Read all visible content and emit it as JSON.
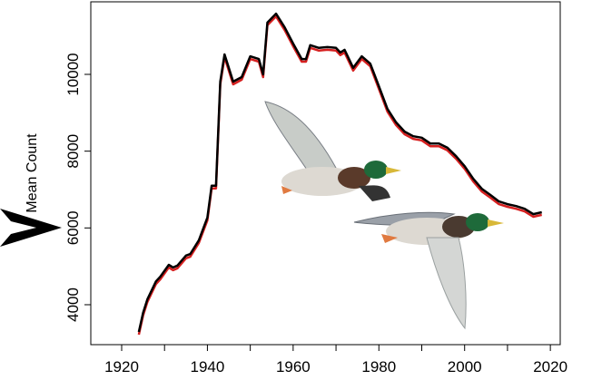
{
  "chart_data": {
    "type": "line",
    "y_label": "Mean Count",
    "x": [
      1924,
      1925,
      1926,
      1928,
      1929,
      1931,
      1932,
      1933,
      1935,
      1936,
      1938,
      1940,
      1941,
      1942,
      1943,
      1944,
      1946,
      1948,
      1950,
      1952,
      1953,
      1954,
      1956,
      1958,
      1960,
      1962,
      1963,
      1964,
      1966,
      1968,
      1970,
      1971,
      1972,
      1974,
      1976,
      1978,
      1980,
      1982,
      1984,
      1986,
      1988,
      1990,
      1992,
      1994,
      1996,
      1998,
      2000,
      2002,
      2004,
      2006,
      2008,
      2010,
      2012,
      2014,
      2016,
      2018
    ],
    "series": [
      {
        "color": "#d62020",
        "values": [
          3220,
          3720,
          4070,
          4540,
          4660,
          4970,
          4900,
          4950,
          5210,
          5250,
          5610,
          6200,
          7030,
          7030,
          9740,
          10450,
          9740,
          9860,
          10400,
          10330,
          9930,
          11280,
          11510,
          11160,
          10730,
          10330,
          10330,
          10690,
          10620,
          10640,
          10620,
          10500,
          10570,
          10100,
          10400,
          10210,
          9620,
          9030,
          8680,
          8440,
          8320,
          8280,
          8130,
          8130,
          8020,
          7800,
          7540,
          7210,
          6950,
          6790,
          6620,
          6550,
          6500,
          6430,
          6290,
          6340
        ]
      },
      {
        "color": "#000000",
        "values": [
          3290,
          3790,
          4140,
          4610,
          4730,
          5040,
          4970,
          5020,
          5280,
          5320,
          5680,
          6270,
          7100,
          7100,
          9810,
          10520,
          9810,
          9930,
          10470,
          10400,
          10000,
          11350,
          11580,
          11230,
          10800,
          10400,
          10400,
          10760,
          10690,
          10710,
          10690,
          10570,
          10640,
          10170,
          10470,
          10280,
          9690,
          9100,
          8750,
          8510,
          8390,
          8350,
          8200,
          8200,
          8090,
          7870,
          7610,
          7280,
          7020,
          6860,
          6690,
          6620,
          6570,
          6500,
          6360,
          6410
        ]
      }
    ],
    "xlim": [
      1912.8,
      2022.3
    ],
    "ylim": [
      2960,
      11890
    ],
    "xticks": [
      1920,
      1940,
      1960,
      1980,
      2000,
      2020
    ],
    "xminorticks": [
      1930,
      1950,
      1970,
      1990,
      2010
    ],
    "yticks": [
      4000,
      6000,
      8000,
      10000
    ]
  }
}
